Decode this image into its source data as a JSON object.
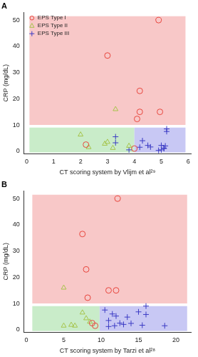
{
  "chart_data": [
    {
      "type": "scatter",
      "title": "A",
      "x_label": "CT scoring system by Vlijm et al²⁹",
      "y_label": "CRP (mg/dL)",
      "xlim": [
        -0.1,
        6.1
      ],
      "xticks": [
        0,
        1,
        2,
        3,
        4,
        5,
        6
      ],
      "ylim": [
        -1,
        53
      ],
      "yticks": [
        0,
        10,
        20,
        30,
        40,
        50
      ],
      "grid": false,
      "legend": "upper left",
      "regions": [
        {
          "xlim": [
            0.1,
            5.9
          ],
          "ylim": [
            10,
            51.5
          ],
          "color": "#f8c8c8"
        },
        {
          "xlim": [
            0.1,
            4.0
          ],
          "ylim": [
            -0.5,
            9
          ],
          "color": "#c9ecc9"
        },
        {
          "xlim": [
            4.0,
            5.9
          ],
          "ylim": [
            -0.5,
            9
          ],
          "color": "#c8c8f4"
        }
      ],
      "series": [
        {
          "name": "EPS Type I",
          "color": "#e8453c",
          "marker": "circle",
          "x": [
            3.0,
            4.9,
            4.2,
            4.2,
            4.1,
            4.95,
            2.2,
            4.0
          ],
          "values": [
            36.5,
            50,
            23,
            15,
            12.3,
            15,
            2.5,
            1.0
          ]
        },
        {
          "name": "EPS Type II",
          "color": "#a6c44a",
          "marker": "triangle",
          "x": [
            3.3,
            2.0,
            2.3,
            2.9,
            3.0,
            3.2,
            3.8
          ],
          "values": [
            16,
            6.3,
            1.5,
            2.8,
            3.5,
            1.2,
            2.0
          ]
        },
        {
          "name": "EPS Type III",
          "color": "#3b3bc4",
          "marker": "cross",
          "x": [
            3.3,
            3.3,
            4.2,
            4.3,
            4.5,
            4.6,
            5.0,
            5.1,
            5.15,
            5.2,
            5.2,
            5.1,
            4.9,
            5.0,
            3.8
          ],
          "values": [
            5.5,
            3.2,
            1.5,
            4.0,
            2.2,
            1.6,
            0.5,
            1.0,
            2.0,
            7.5,
            8.5,
            1.2,
            0.3,
            2.2,
            0.5
          ]
        }
      ]
    },
    {
      "type": "scatter",
      "title": "B",
      "x_label": "CT scoring system by Tarzi et al²⁸",
      "y_label": "CRP (mg/dL)",
      "xlim": [
        -0.3,
        22
      ],
      "xticks": [
        0,
        5,
        10,
        15,
        20
      ],
      "ylim": [
        -1,
        53
      ],
      "yticks": [
        0,
        10,
        20,
        30,
        40,
        50
      ],
      "grid": false,
      "regions": [
        {
          "xlim": [
            0.8,
            21.5
          ],
          "ylim": [
            10,
            51.5
          ],
          "color": "#f8c8c8"
        },
        {
          "xlim": [
            0.8,
            9.8
          ],
          "ylim": [
            -0.5,
            9
          ],
          "color": "#c9ecc9"
        },
        {
          "xlim": [
            9.8,
            21.5
          ],
          "ylim": [
            -0.5,
            9
          ],
          "color": "#c8c8f4"
        }
      ],
      "series": [
        {
          "name": "EPS Type I",
          "color": "#e8453c",
          "marker": "circle",
          "x": [
            7.5,
            12.2,
            8.0,
            11.0,
            12.0,
            8.2,
            8.8,
            9.2
          ],
          "values": [
            36.5,
            50,
            23,
            15,
            15,
            12.2,
            2.5,
            1.5
          ]
        },
        {
          "name": "EPS Type II",
          "color": "#a6c44a",
          "marker": "triangle",
          "x": [
            5.0,
            7.5,
            8.0,
            5.0,
            6.0,
            6.5,
            8.5
          ],
          "values": [
            16,
            6.5,
            4.3,
            1.5,
            1.8,
            1.5,
            3.0
          ]
        },
        {
          "name": "EPS Type III",
          "color": "#3b3bc4",
          "marker": "cross",
          "x": [
            10.5,
            11.0,
            11.0,
            11.5,
            12.0,
            12.5,
            13.0,
            13.5,
            14.0,
            15.0,
            15.5,
            16.0,
            16.0,
            18.5,
            11.8
          ],
          "values": [
            7.5,
            3.5,
            1.2,
            6.0,
            5.2,
            2.5,
            2.0,
            4.8,
            2.4,
            6.8,
            1.7,
            9.0,
            5.8,
            1.5,
            1.5
          ]
        }
      ]
    }
  ]
}
